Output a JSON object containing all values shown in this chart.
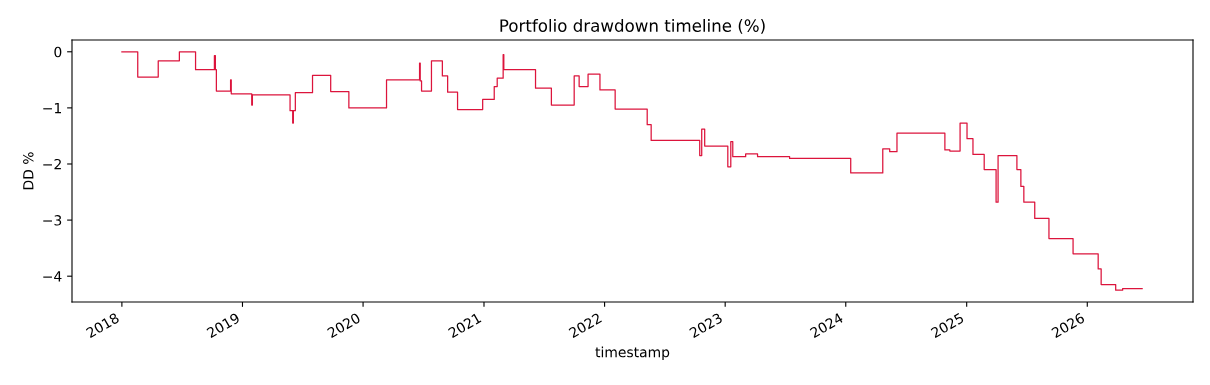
{
  "chart_data": {
    "type": "step",
    "title": "Portfolio drawdown timeline (%)",
    "xlabel": "timestamp",
    "ylabel": "DD %",
    "x": [
      "2018-01-01",
      "2018-02-18",
      "2018-04-21",
      "2018-06-24",
      "2018-08-12",
      "2018-10-08",
      "2018-10-11",
      "2018-10-14",
      "2018-11-26",
      "2018-11-28",
      "2019-01-29",
      "2019-01-31",
      "2019-05-25",
      "2019-06-02",
      "2019-06-04",
      "2019-06-10",
      "2019-08-01",
      "2019-09-25",
      "2019-11-19",
      "2020-03-12",
      "2020-06-20",
      "2020-06-22",
      "2020-06-26",
      "2020-07-26",
      "2020-08-28",
      "2020-09-13",
      "2020-10-13",
      "2020-12-28",
      "2021-02-01",
      "2021-02-10",
      "2021-02-28",
      "2021-03-02",
      "2021-06-06",
      "2021-07-24",
      "2021-10-01",
      "2021-10-16",
      "2021-11-12",
      "2021-12-18",
      "2022-02-02",
      "2022-05-10",
      "2022-05-22",
      "2022-10-16",
      "2022-10-22",
      "2022-10-31",
      "2023-01-09",
      "2023-01-18",
      "2023-01-24",
      "2023-03-04",
      "2023-04-09",
      "2023-07-15",
      "2024-01-16",
      "2024-04-22",
      "2024-05-13",
      "2024-06-04",
      "2024-10-27",
      "2024-11-11",
      "2024-12-12",
      "2025-01-02",
      "2025-01-20",
      "2025-02-23",
      "2025-03-31",
      "2025-04-06",
      "2025-06-02",
      "2025-06-14",
      "2025-06-23",
      "2025-07-26",
      "2025-09-07",
      "2025-11-19",
      "2026-02-03",
      "2026-02-12",
      "2026-03-28",
      "2026-04-18",
      "2026-06-16"
    ],
    "values": [
      0,
      -0.45,
      -0.16,
      0,
      -0.32,
      -0.07,
      -0.32,
      -0.7,
      -0.5,
      -0.75,
      -0.95,
      -0.77,
      -1.05,
      -1.27,
      -1.05,
      -0.73,
      -0.42,
      -0.71,
      -1.0,
      -0.5,
      -0.2,
      -0.52,
      -0.7,
      -0.16,
      -0.43,
      -0.72,
      -1.03,
      -0.85,
      -0.62,
      -0.47,
      -0.05,
      -0.32,
      -0.65,
      -0.95,
      -0.43,
      -0.62,
      -0.4,
      -0.68,
      -1.02,
      -1.3,
      -1.58,
      -1.85,
      -1.38,
      -1.68,
      -2.05,
      -1.6,
      -1.87,
      -1.82,
      -1.87,
      -1.9,
      -2.16,
      -1.73,
      -1.78,
      -1.45,
      -1.75,
      -1.77,
      -1.27,
      -1.55,
      -1.83,
      -2.1,
      -2.68,
      -1.85,
      -2.1,
      -2.4,
      -2.68,
      -2.97,
      -3.33,
      -3.6,
      -3.87,
      -4.15,
      -4.25,
      -4.22,
      -4.22
    ],
    "color": "#dc143c",
    "xlim": [
      "2017-08-03",
      "2026-11-17"
    ],
    "xticks": [
      {
        "value": "2018",
        "label": "2018"
      },
      {
        "value": "2019",
        "label": "2019"
      },
      {
        "value": "2020",
        "label": "2020"
      },
      {
        "value": "2021",
        "label": "2021"
      },
      {
        "value": "2022",
        "label": "2022"
      },
      {
        "value": "2023",
        "label": "2023"
      },
      {
        "value": "2024",
        "label": "2024"
      },
      {
        "value": "2025",
        "label": "2025"
      },
      {
        "value": "2026",
        "label": "2026"
      }
    ],
    "ylim": [
      -4.46,
      0.21
    ],
    "yticks": [
      -4,
      -3,
      -2,
      -1,
      0
    ],
    "grid": false,
    "legend": false
  }
}
